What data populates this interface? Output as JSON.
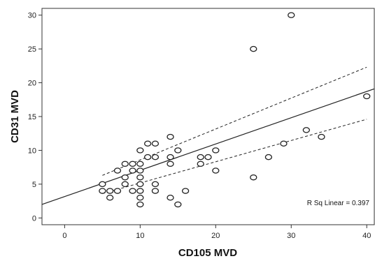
{
  "chart_data": {
    "type": "scatter",
    "title": "",
    "xlabel": "CD105 MVD",
    "ylabel": "CD31 MVD",
    "xlim": [
      -3,
      41
    ],
    "ylim": [
      -1,
      31
    ],
    "x_ticks": [
      0,
      10,
      20,
      30,
      40
    ],
    "y_ticks": [
      0,
      5,
      10,
      15,
      20,
      25,
      30
    ],
    "grid": false,
    "points": [
      {
        "x": 5,
        "y": 5
      },
      {
        "x": 5,
        "y": 4
      },
      {
        "x": 6,
        "y": 4
      },
      {
        "x": 6,
        "y": 3
      },
      {
        "x": 7,
        "y": 7
      },
      {
        "x": 7,
        "y": 4
      },
      {
        "x": 8,
        "y": 8
      },
      {
        "x": 8,
        "y": 6
      },
      {
        "x": 8,
        "y": 5
      },
      {
        "x": 9,
        "y": 8
      },
      {
        "x": 9,
        "y": 7
      },
      {
        "x": 9,
        "y": 4
      },
      {
        "x": 10,
        "y": 10
      },
      {
        "x": 10,
        "y": 8
      },
      {
        "x": 10,
        "y": 7
      },
      {
        "x": 10,
        "y": 6
      },
      {
        "x": 10,
        "y": 5
      },
      {
        "x": 10,
        "y": 4
      },
      {
        "x": 10,
        "y": 3
      },
      {
        "x": 10,
        "y": 2
      },
      {
        "x": 11,
        "y": 11
      },
      {
        "x": 11,
        "y": 9
      },
      {
        "x": 12,
        "y": 11
      },
      {
        "x": 12,
        "y": 9
      },
      {
        "x": 12,
        "y": 5
      },
      {
        "x": 12,
        "y": 4
      },
      {
        "x": 14,
        "y": 12
      },
      {
        "x": 14,
        "y": 9
      },
      {
        "x": 14,
        "y": 8
      },
      {
        "x": 14,
        "y": 3
      },
      {
        "x": 15,
        "y": 10
      },
      {
        "x": 15,
        "y": 2
      },
      {
        "x": 16,
        "y": 4
      },
      {
        "x": 18,
        "y": 9
      },
      {
        "x": 18,
        "y": 8
      },
      {
        "x": 19,
        "y": 9
      },
      {
        "x": 20,
        "y": 10
      },
      {
        "x": 20,
        "y": 7
      },
      {
        "x": 25,
        "y": 25
      },
      {
        "x": 25,
        "y": 6
      },
      {
        "x": 27,
        "y": 9
      },
      {
        "x": 29,
        "y": 11
      },
      {
        "x": 30,
        "y": 30
      },
      {
        "x": 32,
        "y": 13
      },
      {
        "x": 34,
        "y": 12
      },
      {
        "x": 40,
        "y": 18
      }
    ],
    "fit_line": {
      "x": [
        -3,
        41
      ],
      "y": [
        2.0,
        19.1
      ]
    },
    "ci_upper": {
      "x": [
        5,
        40
      ],
      "y": [
        6.3,
        22.3
      ]
    },
    "ci_lower": {
      "x": [
        5,
        40
      ],
      "y": [
        3.6,
        14.6
      ]
    },
    "annotation": "R Sq Linear = 0.397"
  }
}
